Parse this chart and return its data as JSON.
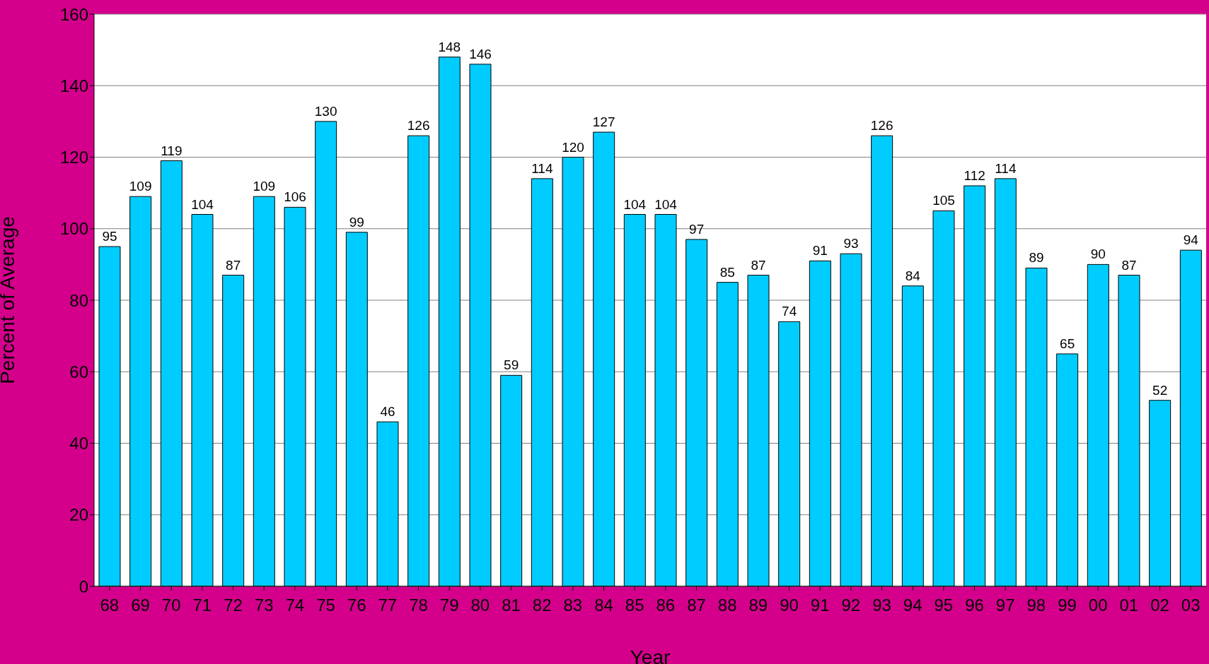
{
  "chart_data": {
    "type": "bar",
    "xlabel": "Year",
    "ylabel": "Percent of Average",
    "categories": [
      "68",
      "69",
      "70",
      "71",
      "72",
      "73",
      "74",
      "75",
      "76",
      "77",
      "78",
      "79",
      "80",
      "81",
      "82",
      "83",
      "84",
      "85",
      "86",
      "87",
      "88",
      "89",
      "90",
      "91",
      "92",
      "93",
      "94",
      "95",
      "96",
      "97",
      "98",
      "99",
      "00",
      "01",
      "02",
      "03"
    ],
    "values": [
      95,
      109,
      119,
      104,
      87,
      109,
      106,
      130,
      99,
      46,
      126,
      148,
      146,
      59,
      114,
      120,
      127,
      104,
      104,
      97,
      85,
      87,
      74,
      91,
      93,
      126,
      84,
      105,
      112,
      114,
      89,
      65,
      90,
      87,
      52,
      94
    ],
    "color": "#00ccff",
    "ylim": [
      0,
      160
    ],
    "yticks": [
      0,
      20,
      40,
      60,
      80,
      100,
      120,
      140,
      160
    ],
    "grid": "y",
    "data_labels": true
  }
}
